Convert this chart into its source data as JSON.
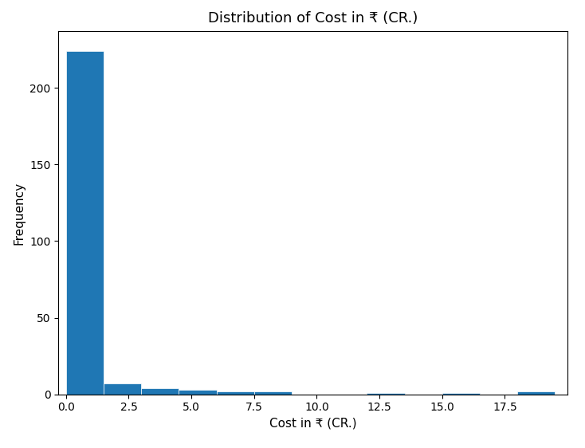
{
  "title": "Distribution of Cost in ₹ (CR.)",
  "xlabel": "Cost in ₹ (CR.)",
  "ylabel": "Frequency",
  "bar_color": "#1f77b4",
  "bin_edges": [
    0.0,
    1.5,
    3.0,
    4.5,
    6.0,
    7.5,
    9.0,
    10.5,
    12.0,
    13.5,
    15.0,
    16.5,
    18.0,
    19.5
  ],
  "bar_heights": [
    224,
    7,
    4,
    3,
    2,
    2,
    0,
    0,
    1,
    0,
    1,
    0,
    2
  ],
  "xlim": [
    -0.3,
    20.0
  ],
  "ylim": [
    0,
    237
  ],
  "yticks": [
    0,
    50,
    100,
    150,
    200
  ],
  "xticks": [
    0.0,
    2.5,
    5.0,
    7.5,
    10.0,
    12.5,
    15.0,
    17.5
  ],
  "title_fontsize": 13,
  "label_fontsize": 11,
  "tick_fontsize": 10,
  "figsize": [
    7.34,
    5.62
  ],
  "dpi": 100,
  "background_color": "#ffffff"
}
